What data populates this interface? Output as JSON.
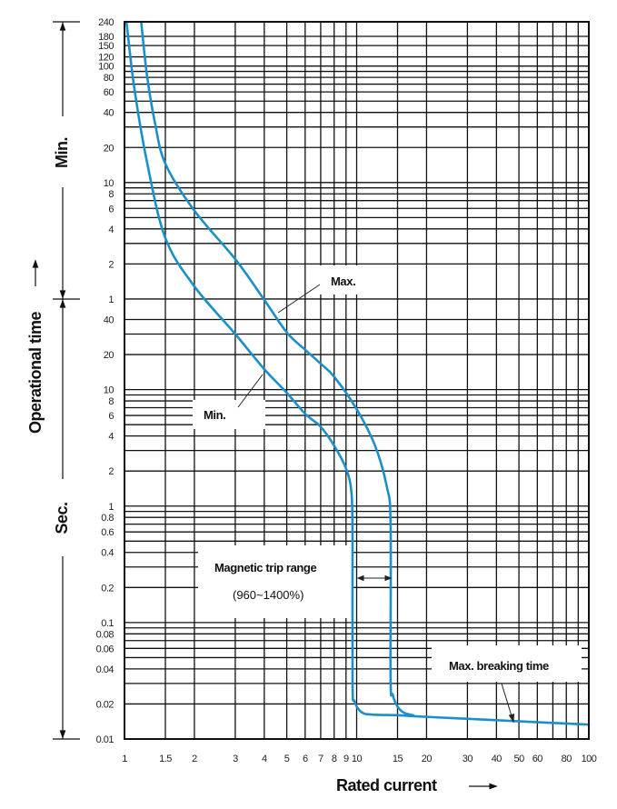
{
  "chart_data": {
    "type": "line",
    "title": "",
    "xlabel": "Rated current",
    "ylabel": "Operational time",
    "y_unit_labels": {
      "minutes": "Min.",
      "seconds": "Sec."
    },
    "x_scale": "log",
    "y_scale": "log",
    "xlim": [
      1,
      100
    ],
    "ylim_seconds": [
      0.01,
      14400
    ],
    "grid": true,
    "x_ticks": [
      "1",
      "1.5",
      "2",
      "3",
      "4",
      "5",
      "6",
      "7",
      "8",
      "9",
      "10",
      "15",
      "20",
      "30",
      "40",
      "50",
      "60",
      "80",
      "100"
    ],
    "y_ticks_minutes": [
      {
        "label": "240",
        "seconds": 14400
      },
      {
        "label": "180",
        "seconds": 10800
      },
      {
        "label": "150",
        "seconds": 9000
      },
      {
        "label": "120",
        "seconds": 7200
      },
      {
        "label": "100",
        "seconds": 6000
      },
      {
        "label": "80",
        "seconds": 4800
      },
      {
        "label": "60",
        "seconds": 3600
      },
      {
        "label": "40",
        "seconds": 2400
      },
      {
        "label": "20",
        "seconds": 1200
      },
      {
        "label": "10",
        "seconds": 600
      },
      {
        "label": "8",
        "seconds": 480
      },
      {
        "label": "6",
        "seconds": 360
      },
      {
        "label": "4",
        "seconds": 240
      },
      {
        "label": "2",
        "seconds": 120
      },
      {
        "label": "1",
        "seconds": 60
      }
    ],
    "y_ticks_seconds": [
      {
        "label": "40",
        "seconds": 40
      },
      {
        "label": "20",
        "seconds": 20
      },
      {
        "label": "10",
        "seconds": 10
      },
      {
        "label": "8",
        "seconds": 8
      },
      {
        "label": "6",
        "seconds": 6
      },
      {
        "label": "4",
        "seconds": 4
      },
      {
        "label": "2",
        "seconds": 2
      },
      {
        "label": "1",
        "seconds": 1
      },
      {
        "label": "0.8",
        "seconds": 0.8
      },
      {
        "label": "0.6",
        "seconds": 0.6
      },
      {
        "label": "0.4",
        "seconds": 0.4
      },
      {
        "label": "0.2",
        "seconds": 0.2
      },
      {
        "label": "0.1",
        "seconds": 0.1
      },
      {
        "label": "0.08",
        "seconds": 0.08
      },
      {
        "label": "0.06",
        "seconds": 0.06
      },
      {
        "label": "0.04",
        "seconds": 0.04
      },
      {
        "label": "0.02",
        "seconds": 0.02
      },
      {
        "label": "0.01",
        "seconds": 0.01
      }
    ],
    "series": [
      {
        "name": "Min.",
        "color": "#1a8fc9",
        "x": [
          1.02,
          1.1,
          1.25,
          1.5,
          2,
          3,
          4,
          5,
          6,
          7,
          8,
          9,
          9.5,
          9.6,
          9.6,
          9.8,
          10.5,
          11.7,
          15,
          20,
          40,
          100
        ],
        "y": [
          14400,
          4000,
          900,
          200,
          77,
          30,
          15,
          9.4,
          6.2,
          4.8,
          3.3,
          2.1,
          1.3,
          0.5,
          0.03,
          0.021,
          0.017,
          0.0162,
          0.016,
          0.0155,
          0.0145,
          0.0133
        ]
      },
      {
        "name": "Max.",
        "color": "#1a8fc9",
        "x": [
          1.18,
          1.25,
          1.35,
          1.5,
          2,
          3,
          4,
          5,
          6,
          7,
          8,
          10,
          12,
          13.5,
          14,
          14,
          14.3,
          15,
          16,
          17.5
        ],
        "y": [
          14400,
          5000,
          2000,
          870,
          344,
          132,
          59,
          31,
          22,
          16.7,
          12.9,
          6.8,
          3.3,
          1.46,
          0.7,
          0.033,
          0.024,
          0.019,
          0.0168,
          0.016
        ]
      }
    ],
    "annotations": {
      "max_label": "Max.",
      "min_label": "Min.",
      "magnetic_trip_range": "Magnetic trip range",
      "magnetic_trip_percent": "(960~1400%)",
      "max_breaking_time": "Max. breaking time"
    }
  }
}
